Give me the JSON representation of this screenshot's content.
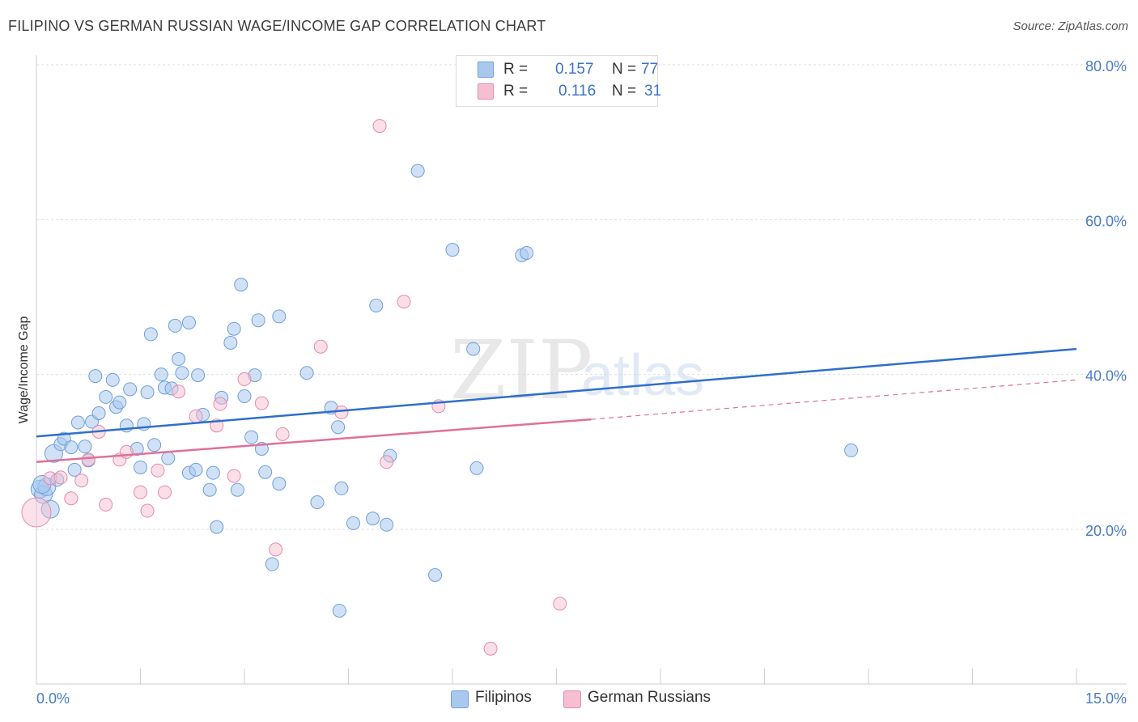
{
  "header": {
    "title": "FILIPINO VS GERMAN RUSSIAN WAGE/INCOME GAP CORRELATION CHART",
    "source": "Source: ZipAtlas.com"
  },
  "legend": {
    "r_label": "R =",
    "n_label": "N =",
    "series1": {
      "r": "0.157",
      "n": "77"
    },
    "series2": {
      "r": "0.116",
      "n": "31"
    }
  },
  "bottom_legend": {
    "series1": "Filipinos",
    "series2": "German Russians"
  },
  "watermark": {
    "zip": "ZIP",
    "atlas": "atlas"
  },
  "colors": {
    "blue_fill": "#a9c8ee",
    "blue_stroke": "#6f9fda",
    "blue_line": "#2f6fcb",
    "pink_fill": "#f6bfd1",
    "pink_stroke": "#e58aa9",
    "pink_line": "#e0709a"
  },
  "chart_data": {
    "type": "scatter",
    "title": "FILIPINO VS GERMAN RUSSIAN WAGE/INCOME GAP CORRELATION CHART",
    "xlabel": "",
    "ylabel": "Wage/Income Gap",
    "xlim": [
      0,
      15
    ],
    "ylim": [
      0,
      82
    ],
    "x_tick_labels": [
      "0.0%",
      "15.0%"
    ],
    "y_ticks": [
      20,
      40,
      60,
      80
    ],
    "y_tick_labels": [
      "20.0%",
      "40.0%",
      "60.0%",
      "80.0%"
    ],
    "grid": true,
    "series": [
      {
        "name": "Filipinos",
        "r": 0.157,
        "n": 77,
        "trend": {
          "x": [
            0,
            15
          ],
          "y": [
            32.0,
            43.3
          ]
        },
        "points": [
          [
            0.05,
            25.2
          ],
          [
            0.1,
            24.5
          ],
          [
            0.15,
            25.5
          ],
          [
            0.2,
            22.6
          ],
          [
            0.25,
            29.8
          ],
          [
            0.3,
            26.4
          ],
          [
            0.35,
            31.0
          ],
          [
            0.4,
            31.7
          ],
          [
            0.5,
            30.6
          ],
          [
            0.55,
            27.7
          ],
          [
            0.6,
            33.8
          ],
          [
            0.7,
            30.7
          ],
          [
            0.75,
            28.9
          ],
          [
            0.8,
            33.9
          ],
          [
            0.85,
            39.8
          ],
          [
            0.9,
            35.0
          ],
          [
            1.0,
            37.1
          ],
          [
            1.1,
            39.3
          ],
          [
            1.15,
            35.8
          ],
          [
            1.2,
            36.4
          ],
          [
            1.3,
            33.4
          ],
          [
            1.35,
            38.1
          ],
          [
            1.45,
            30.4
          ],
          [
            1.5,
            28.0
          ],
          [
            1.55,
            33.6
          ],
          [
            1.6,
            37.7
          ],
          [
            1.65,
            45.2
          ],
          [
            1.7,
            30.9
          ],
          [
            1.8,
            40.0
          ],
          [
            1.85,
            38.3
          ],
          [
            1.9,
            29.2
          ],
          [
            1.95,
            38.2
          ],
          [
            2.0,
            46.3
          ],
          [
            2.05,
            42.0
          ],
          [
            2.1,
            40.2
          ],
          [
            2.2,
            46.7
          ],
          [
            2.2,
            27.3
          ],
          [
            2.3,
            27.7
          ],
          [
            2.33,
            39.9
          ],
          [
            2.4,
            34.8
          ],
          [
            2.5,
            25.1
          ],
          [
            2.55,
            27.3
          ],
          [
            2.6,
            20.3
          ],
          [
            2.67,
            37.0
          ],
          [
            2.8,
            44.1
          ],
          [
            2.85,
            45.9
          ],
          [
            2.9,
            25.1
          ],
          [
            2.95,
            51.6
          ],
          [
            3.0,
            37.2
          ],
          [
            3.1,
            31.9
          ],
          [
            3.15,
            39.9
          ],
          [
            3.2,
            47.0
          ],
          [
            3.25,
            30.4
          ],
          [
            3.3,
            27.4
          ],
          [
            3.4,
            15.5
          ],
          [
            3.5,
            47.5
          ],
          [
            3.5,
            25.9
          ],
          [
            3.9,
            40.2
          ],
          [
            4.05,
            23.5
          ],
          [
            4.25,
            35.7
          ],
          [
            4.35,
            33.2
          ],
          [
            4.37,
            9.5
          ],
          [
            4.4,
            25.3
          ],
          [
            4.57,
            20.8
          ],
          [
            4.85,
            21.4
          ],
          [
            4.9,
            48.9
          ],
          [
            5.05,
            20.6
          ],
          [
            5.1,
            29.5
          ],
          [
            5.5,
            66.3
          ],
          [
            5.75,
            14.1
          ],
          [
            6.0,
            56.1
          ],
          [
            6.3,
            43.3
          ],
          [
            6.35,
            27.9
          ],
          [
            7.0,
            55.4
          ],
          [
            7.07,
            55.7
          ],
          [
            11.75,
            30.2
          ],
          [
            0.08,
            25.8
          ]
        ]
      },
      {
        "name": "German Russians",
        "r": 0.116,
        "n": 31,
        "trend": {
          "x": [
            0,
            8.0
          ],
          "y": [
            28.7,
            34.2
          ],
          "dashed_extension": {
            "x": [
              8.0,
              15
            ],
            "y": [
              34.2,
              39.3
            ]
          }
        },
        "points": [
          [
            0.0,
            22.2
          ],
          [
            0.2,
            26.6
          ],
          [
            0.35,
            26.7
          ],
          [
            0.5,
            24.0
          ],
          [
            0.65,
            26.3
          ],
          [
            0.75,
            29.0
          ],
          [
            0.9,
            32.6
          ],
          [
            1.0,
            23.2
          ],
          [
            1.2,
            29.0
          ],
          [
            1.3,
            30.0
          ],
          [
            1.5,
            24.8
          ],
          [
            1.6,
            22.4
          ],
          [
            1.75,
            27.6
          ],
          [
            1.85,
            24.8
          ],
          [
            2.05,
            37.8
          ],
          [
            2.3,
            34.6
          ],
          [
            2.6,
            33.4
          ],
          [
            2.65,
            36.2
          ],
          [
            2.85,
            26.9
          ],
          [
            3.0,
            39.4
          ],
          [
            3.25,
            36.3
          ],
          [
            3.45,
            17.4
          ],
          [
            3.55,
            32.3
          ],
          [
            4.1,
            43.6
          ],
          [
            4.4,
            35.1
          ],
          [
            4.95,
            72.1
          ],
          [
            5.05,
            28.7
          ],
          [
            5.3,
            49.4
          ],
          [
            5.8,
            35.9
          ],
          [
            6.55,
            4.6
          ],
          [
            7.55,
            10.4
          ]
        ]
      }
    ]
  }
}
